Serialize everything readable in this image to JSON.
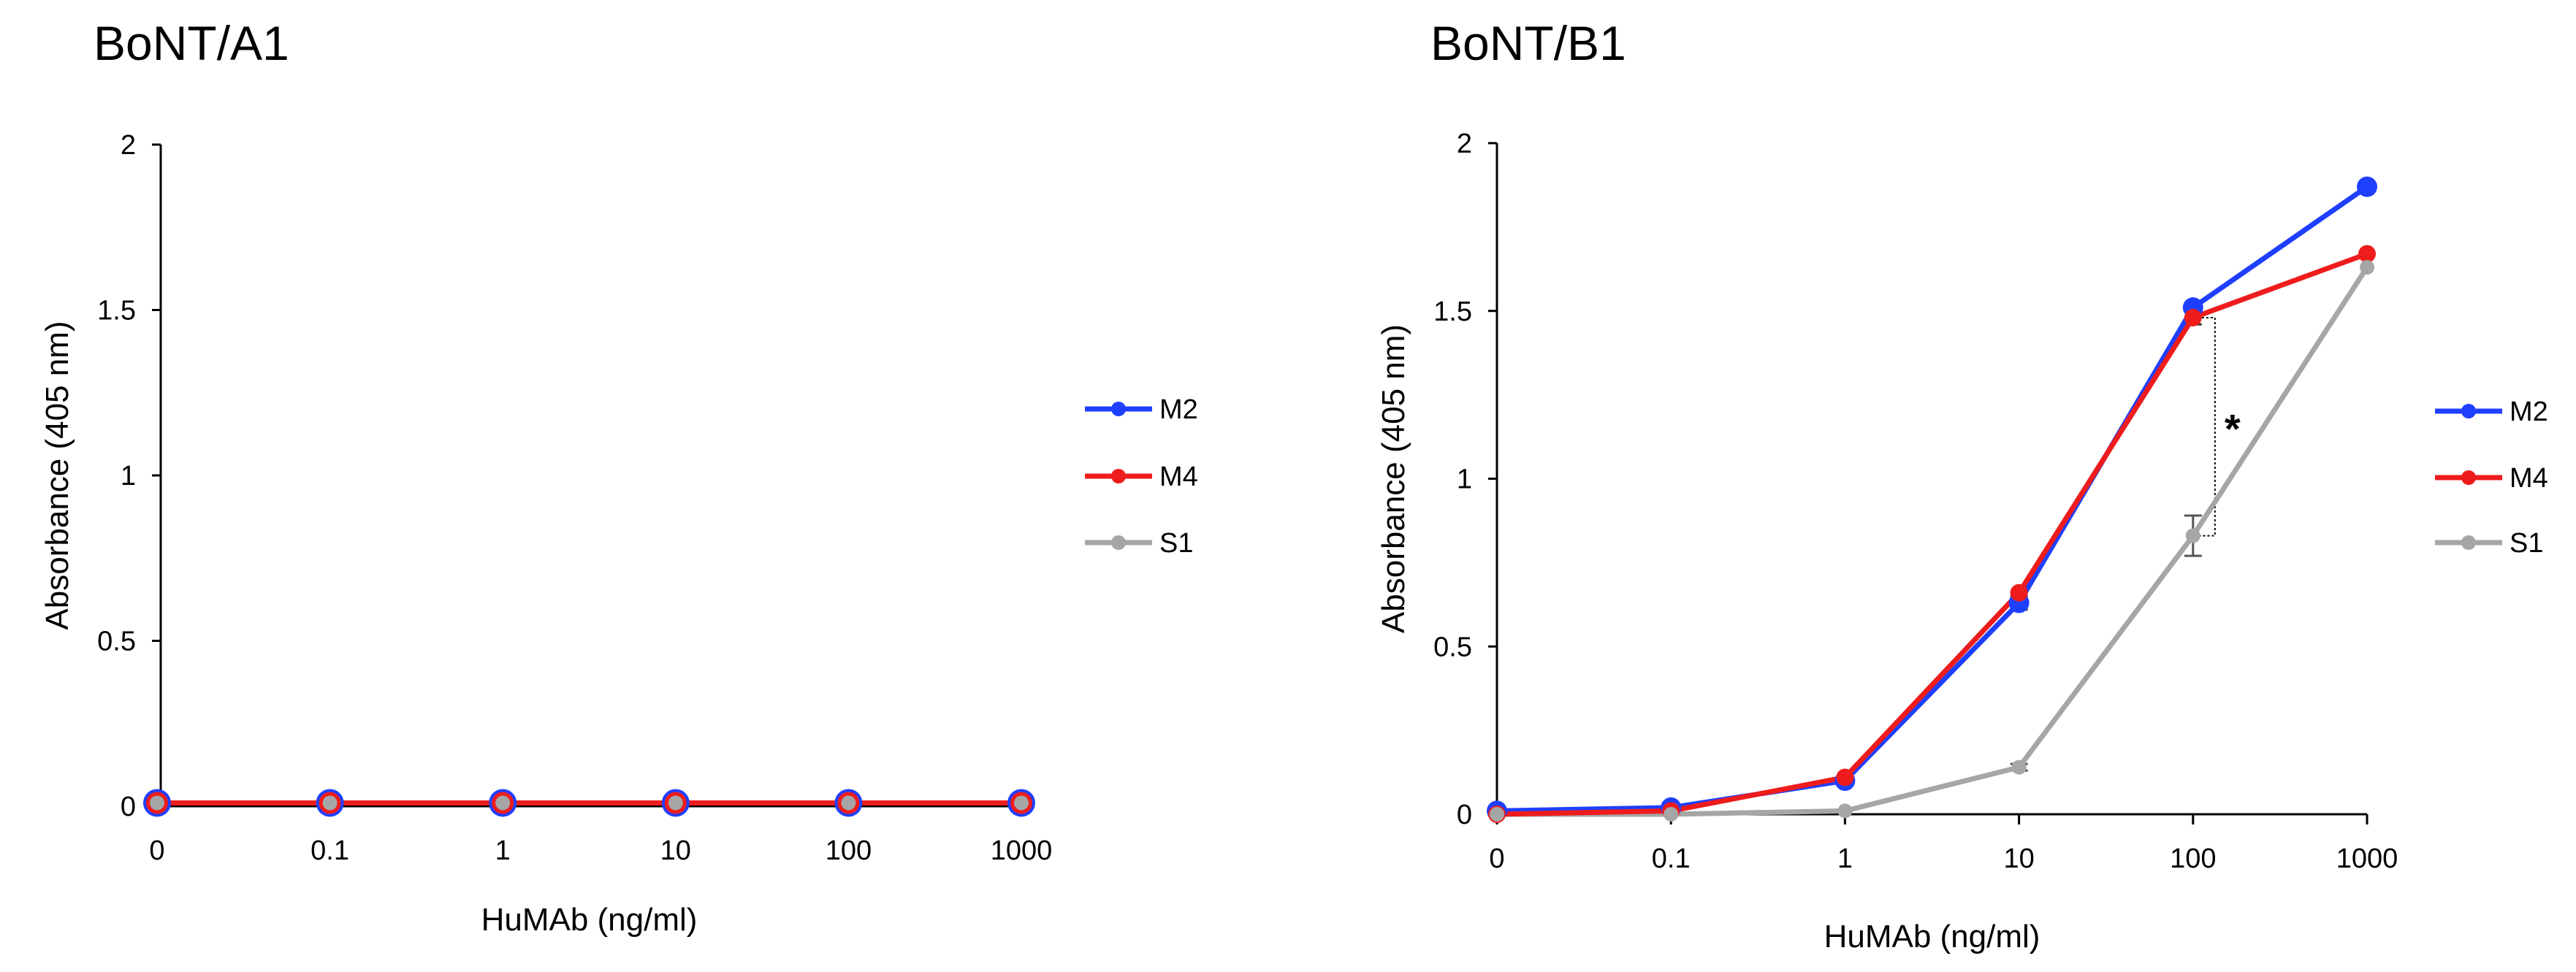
{
  "chart_data": [
    {
      "type": "line",
      "title": "BoNT/A1",
      "xlabel": "HuMAb (ng/ml)",
      "ylabel": "Absorbance (405 nm)",
      "categories": [
        "0",
        "0.1",
        "1",
        "10",
        "100",
        "1000"
      ],
      "ylim": [
        0,
        2
      ],
      "yticks": [
        "0",
        "0.5",
        "1",
        "1.5",
        "2"
      ],
      "grid": false,
      "legend_position": "right",
      "series": [
        {
          "name": "M2",
          "color": "#1f3fff",
          "values": [
            0.01,
            0.01,
            0.01,
            0.01,
            0.01,
            0.01
          ]
        },
        {
          "name": "M4",
          "color": "#ee1c1c",
          "values": [
            0.01,
            0.01,
            0.01,
            0.01,
            0.01,
            0.01
          ]
        },
        {
          "name": "S1",
          "color": "#a6a6a6",
          "values": [
            0.01,
            0.01,
            0.01,
            0.01,
            0.01,
            0.01
          ]
        }
      ]
    },
    {
      "type": "line",
      "title": "BoNT/B1",
      "xlabel": "HuMAb (ng/ml)",
      "ylabel": "Absorbance (405 nm)",
      "categories": [
        "0",
        "0.1",
        "1",
        "10",
        "100",
        "1000"
      ],
      "ylim": [
        0,
        2
      ],
      "yticks": [
        "0",
        "0.5",
        "1",
        "1.5",
        "2"
      ],
      "grid": false,
      "legend_position": "right",
      "series": [
        {
          "name": "M2",
          "color": "#1f3fff",
          "values": [
            0.01,
            0.02,
            0.1,
            0.63,
            1.51,
            1.87
          ]
        },
        {
          "name": "M4",
          "color": "#ee1c1c",
          "values": [
            0.0,
            0.01,
            0.11,
            0.66,
            1.48,
            1.67
          ]
        },
        {
          "name": "S1",
          "color": "#a6a6a6",
          "values": [
            0.0,
            0.0,
            0.01,
            0.14,
            0.83,
            1.63
          ]
        }
      ],
      "error_bars": [
        {
          "series": "S1",
          "category": "10",
          "value": 0.14,
          "err": 0.01
        },
        {
          "series": "S1",
          "category": "100",
          "value": 0.83,
          "err": 0.06
        },
        {
          "series": "M4",
          "category": "100",
          "value": 1.48,
          "err": 0.02
        },
        {
          "series": "M2",
          "category": "10",
          "value": 0.63,
          "err": 0.02
        }
      ],
      "annotations": [
        {
          "text": "*",
          "between": [
            "M4",
            "S1"
          ],
          "category": "100"
        }
      ]
    }
  ]
}
